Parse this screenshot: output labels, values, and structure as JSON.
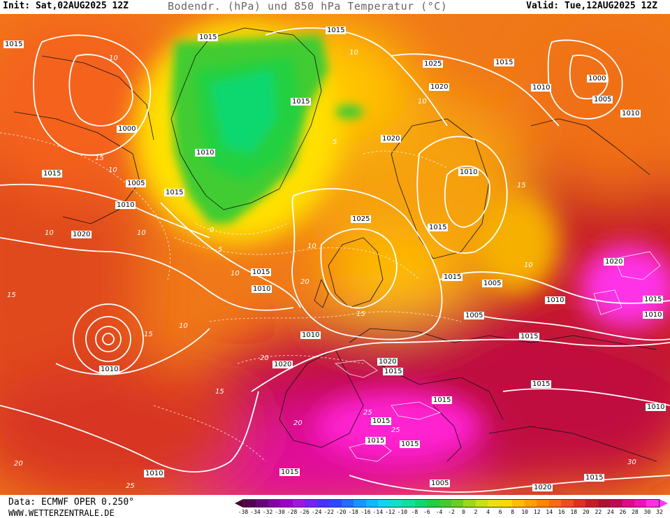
{
  "header": {
    "init": "Init: Sat,02AUG2025 12Z",
    "title": "Bodendr. (hPa) und 850 hPa Temperatur (°C)",
    "valid": "Valid: Tue,12AUG2025 12Z"
  },
  "footer": {
    "data_source": "Data: ECMWF OPER 0.250°",
    "website": "WWW.WETTERZENTRALE.DE"
  },
  "colorbar": {
    "ticks": [
      "-38",
      "-34",
      "-32",
      "-30",
      "-28",
      "-26",
      "-24",
      "-22",
      "-20",
      "-18",
      "-16",
      "-14",
      "-12",
      "-10",
      "-8",
      "-6",
      "-4",
      "-2",
      "0",
      "2",
      "4",
      "6",
      "8",
      "10",
      "12",
      "14",
      "16",
      "18",
      "20",
      "22",
      "24",
      "26",
      "28",
      "30",
      "32"
    ],
    "colors": [
      "#55004f",
      "#6a0080",
      "#8400a8",
      "#9d00c8",
      "#9e18e0",
      "#7a20f0",
      "#4a30ff",
      "#2a48ff",
      "#1e6eff",
      "#1896ff",
      "#10b8ff",
      "#10d4f0",
      "#10e0c8",
      "#10e09c",
      "#10d870",
      "#20d040",
      "#40cc30",
      "#66d020",
      "#9ad818",
      "#c8e014",
      "#ece014",
      "#ffd800",
      "#ffbc00",
      "#ffa000",
      "#ff8400",
      "#fb6818",
      "#f04c20",
      "#e03020",
      "#c81c24",
      "#b01030",
      "#c00858",
      "#e0088c",
      "#f010bc",
      "#ff30e8"
    ],
    "min_arrow_color": "#4a0033",
    "max_arrow_color": "#ff33ff"
  },
  "map": {
    "pressure_labels": [
      "1015",
      "1015",
      "1015",
      "1025",
      "1015",
      "1020",
      "1010",
      "1000",
      "1005",
      "1010",
      "1015",
      "1000",
      "1015",
      "1005",
      "1010",
      "1010",
      "1020",
      "1015",
      "1010",
      "1015",
      "1020",
      "1025",
      "1015",
      "1010",
      "1015",
      "1005",
      "1020",
      "1015",
      "1010",
      "1005",
      "1015",
      "1010",
      "1010",
      "1020",
      "1020",
      "1015",
      "1015",
      "1010",
      "1015",
      "1015",
      "1015",
      "1015",
      "1015",
      "1005",
      "1020",
      "1015",
      "1010",
      "1010"
    ],
    "temperature_labels": [
      "10",
      "15",
      "10",
      "10",
      "15",
      "10",
      "15",
      "10",
      "5",
      "0",
      "5",
      "10",
      "10",
      "10",
      "15",
      "15",
      "20",
      "20",
      "25",
      "25",
      "25",
      "30",
      "20",
      "15",
      "20",
      "10",
      "10"
    ]
  }
}
